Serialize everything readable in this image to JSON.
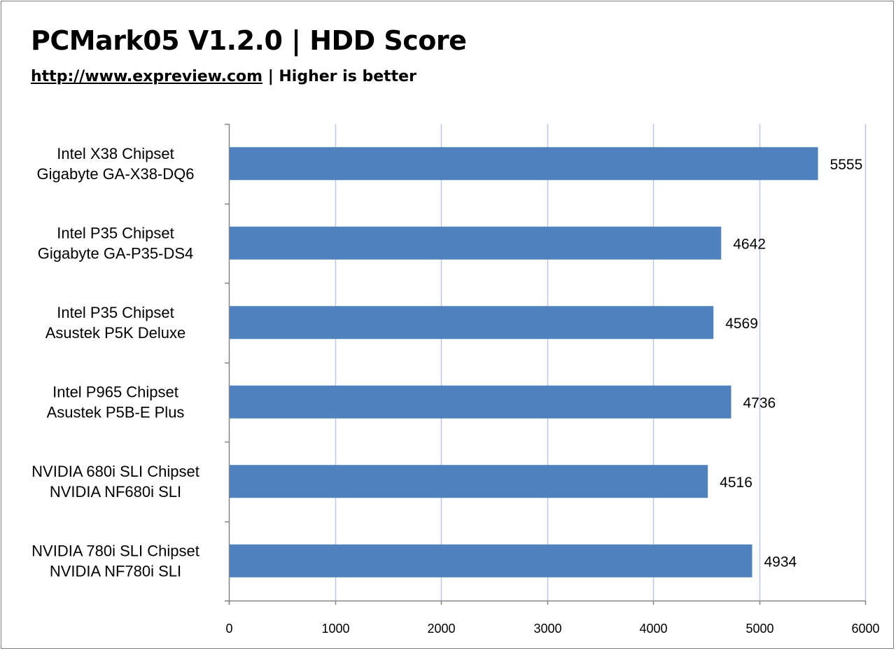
{
  "header": {
    "title": "PCMark05 V1.2.0 | HDD Score",
    "subtitle_link": "http://www.expreview.com",
    "subtitle_rest": " | Higher is better"
  },
  "colors": {
    "bar": "#4f81bd",
    "grid": "#b9c9e4",
    "axis": "#868686"
  },
  "chart_data": {
    "type": "bar",
    "orientation": "horizontal",
    "title": "PCMark05 V1.2.0 | HDD Score",
    "subtitle": "http://www.expreview.com | Higher is better",
    "categories": [
      [
        "Intel X38 Chipset",
        "Gigabyte GA-X38-DQ6"
      ],
      [
        "Intel P35 Chipset",
        "Gigabyte GA-P35-DS4"
      ],
      [
        "Intel P35 Chipset",
        "Asustek P5K Deluxe"
      ],
      [
        "Intel P965 Chipset",
        "Asustek P5B-E Plus"
      ],
      [
        "NVIDIA 680i SLI Chipset",
        "NVIDIA NF680i SLI"
      ],
      [
        "NVIDIA 780i SLI Chipset",
        "NVIDIA NF780i SLI"
      ]
    ],
    "values": [
      5555,
      4642,
      4569,
      4736,
      4516,
      4934
    ],
    "xlim": [
      0,
      6000
    ],
    "xticks": [
      0,
      1000,
      2000,
      3000,
      4000,
      5000,
      6000
    ],
    "grid": "vertical",
    "legend": "none",
    "xlabel": "",
    "ylabel": ""
  }
}
